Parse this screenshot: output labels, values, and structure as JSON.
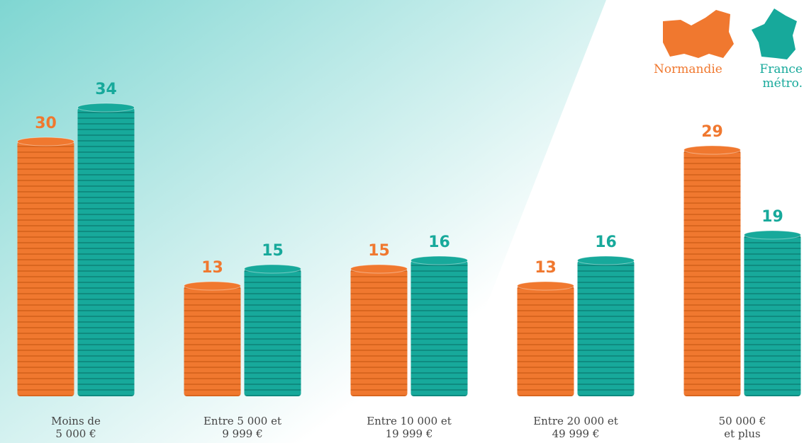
{
  "chart_data": {
    "type": "bar",
    "categories": [
      "Moins de 5 000 €",
      "Entre 5 000 et 9 999 €",
      "Entre 10 000 et 19 999 €",
      "Entre 20 000 et 49 999 €",
      "50 000 € et plus"
    ],
    "series": [
      {
        "name": "Normandie",
        "color": "#f0782f",
        "values": [
          30,
          13,
          15,
          13,
          29
        ]
      },
      {
        "name": "France métro.",
        "color": "#17a99b",
        "values": [
          34,
          15,
          16,
          16,
          19
        ]
      }
    ]
  }
}
